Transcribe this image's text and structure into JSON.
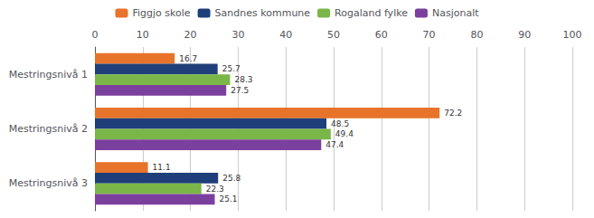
{
  "chart_data": {
    "type": "bar",
    "orientation": "horizontal",
    "categories": [
      "Mestringsnivå 1",
      "Mestringsnivå 2",
      "Mestringsnivå 3"
    ],
    "series": [
      {
        "name": "Figgjo skole",
        "color": "#E8732A",
        "values": [
          16.7,
          72.2,
          11.1
        ]
      },
      {
        "name": "Sandnes kommune",
        "color": "#1F3F7A",
        "values": [
          25.7,
          48.5,
          25.8
        ]
      },
      {
        "name": "Rogaland fylke",
        "color": "#7AB648",
        "values": [
          28.3,
          49.4,
          22.3
        ]
      },
      {
        "name": "Nasjonalt",
        "color": "#7B3F9E",
        "values": [
          27.5,
          47.4,
          25.1
        ]
      }
    ],
    "xlim": [
      0,
      100
    ],
    "xticks": [
      0,
      10,
      20,
      30,
      40,
      50,
      60,
      70,
      80,
      90,
      100
    ],
    "grid": true,
    "data_labels": true,
    "legend": "top"
  }
}
